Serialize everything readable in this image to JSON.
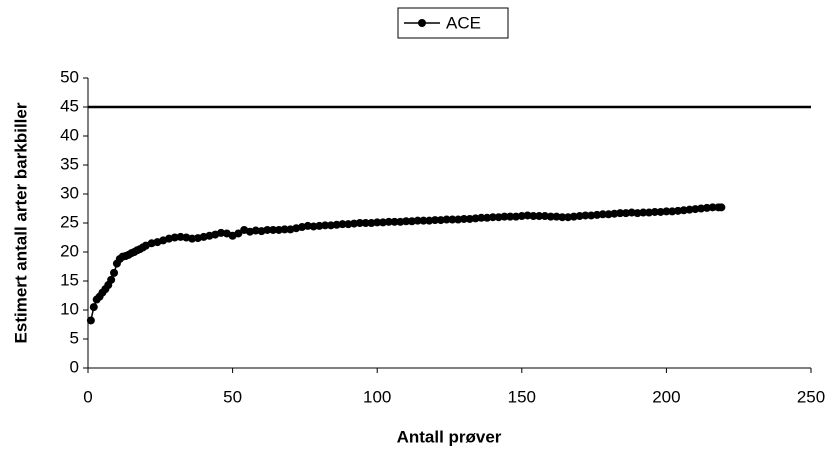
{
  "chart_data": {
    "type": "line",
    "x_label": "Antall prøver",
    "y_label": "Estimert antall arter barkbiller",
    "xlim": [
      0,
      250
    ],
    "xticks": [
      0,
      50,
      100,
      150,
      200,
      250
    ],
    "ylim": [
      0,
      50
    ],
    "yticks": [
      0,
      5,
      10,
      15,
      20,
      25,
      30,
      35,
      40,
      45,
      50
    ],
    "hline": 45,
    "hline_color": "#000000",
    "legend": "top",
    "x": [
      1,
      2,
      3,
      4,
      5,
      6,
      7,
      8,
      9,
      10,
      11,
      12,
      13,
      14,
      15,
      16,
      17,
      18,
      19,
      20,
      22,
      24,
      26,
      28,
      30,
      32,
      34,
      36,
      38,
      40,
      42,
      44,
      46,
      48,
      50,
      52,
      54,
      56,
      58,
      60,
      62,
      64,
      66,
      68,
      70,
      72,
      74,
      76,
      78,
      80,
      82,
      84,
      86,
      88,
      90,
      92,
      94,
      96,
      98,
      100,
      102,
      104,
      106,
      108,
      110,
      112,
      114,
      116,
      118,
      120,
      122,
      124,
      126,
      128,
      130,
      132,
      134,
      136,
      138,
      140,
      142,
      144,
      146,
      148,
      150,
      152,
      154,
      156,
      158,
      160,
      162,
      164,
      166,
      168,
      170,
      172,
      174,
      176,
      178,
      180,
      182,
      184,
      186,
      188,
      190,
      192,
      194,
      196,
      198,
      200,
      202,
      204,
      206,
      208,
      210,
      212,
      214,
      216,
      218,
      219
    ],
    "series": [
      {
        "name": "ACE",
        "color": "#000000",
        "values": [
          8.2,
          10.5,
          11.8,
          12.3,
          13.0,
          13.6,
          14.3,
          15.2,
          16.4,
          18.0,
          18.8,
          19.2,
          19.3,
          19.5,
          19.8,
          20.0,
          20.3,
          20.5,
          20.8,
          21.1,
          21.5,
          21.7,
          22.0,
          22.3,
          22.5,
          22.6,
          22.5,
          22.3,
          22.4,
          22.6,
          22.8,
          23.0,
          23.3,
          23.2,
          22.8,
          23.2,
          23.8,
          23.5,
          23.7,
          23.6,
          23.8,
          23.8,
          23.8,
          23.9,
          23.9,
          24.1,
          24.3,
          24.5,
          24.4,
          24.5,
          24.6,
          24.6,
          24.7,
          24.8,
          24.8,
          24.9,
          25.0,
          25.0,
          25.0,
          25.1,
          25.1,
          25.2,
          25.2,
          25.2,
          25.3,
          25.3,
          25.4,
          25.4,
          25.4,
          25.5,
          25.5,
          25.6,
          25.6,
          25.6,
          25.7,
          25.7,
          25.8,
          25.9,
          25.9,
          26.0,
          26.0,
          26.1,
          26.1,
          26.1,
          26.2,
          26.3,
          26.2,
          26.2,
          26.2,
          26.1,
          26.1,
          26.0,
          26.0,
          26.1,
          26.2,
          26.3,
          26.3,
          26.4,
          26.5,
          26.5,
          26.6,
          26.7,
          26.7,
          26.8,
          26.7,
          26.8,
          26.8,
          26.9,
          26.9,
          27.0,
          27.0,
          27.1,
          27.2,
          27.3,
          27.4,
          27.5,
          27.6,
          27.7,
          27.7,
          27.7
        ]
      }
    ]
  }
}
